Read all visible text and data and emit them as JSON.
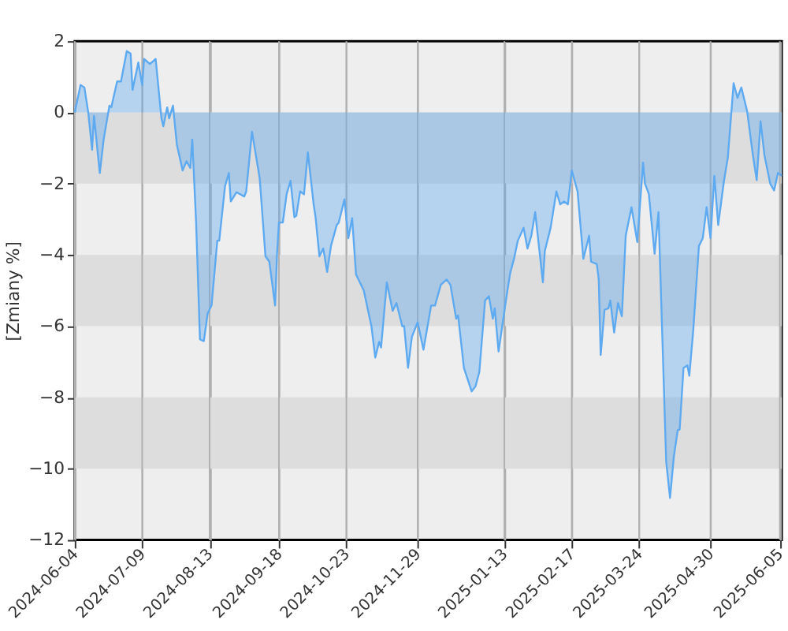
{
  "chart_data": {
    "type": "area",
    "ylabel": "[Zmiany %]",
    "x": [
      "2024-06-04",
      "2024-06-07",
      "2024-06-09",
      "2024-06-11",
      "2024-06-13",
      "2024-06-14",
      "2024-06-17",
      "2024-06-19",
      "2024-06-22",
      "2024-06-23",
      "2024-06-26",
      "2024-06-28",
      "2024-07-01",
      "2024-07-03",
      "2024-07-04",
      "2024-07-07",
      "2024-07-09",
      "2024-07-10",
      "2024-07-13",
      "2024-07-16",
      "2024-07-19",
      "2024-07-20",
      "2024-07-22",
      "2024-07-23",
      "2024-07-25",
      "2024-07-27",
      "2024-07-30",
      "2024-08-01",
      "2024-08-03",
      "2024-08-04",
      "2024-08-06",
      "2024-08-08",
      "2024-08-10",
      "2024-08-12",
      "2024-08-14",
      "2024-08-17",
      "2024-08-18",
      "2024-08-21",
      "2024-08-23",
      "2024-08-24",
      "2024-08-27",
      "2024-08-31",
      "2024-09-01",
      "2024-09-04",
      "2024-09-08",
      "2024-09-11",
      "2024-09-13",
      "2024-09-16",
      "2024-09-17",
      "2024-09-18",
      "2024-09-20",
      "2024-09-22",
      "2024-09-24",
      "2024-09-26",
      "2024-09-27",
      "2024-09-29",
      "2024-10-01",
      "2024-10-03",
      "2024-10-06",
      "2024-10-07",
      "2024-10-09",
      "2024-10-11",
      "2024-10-13",
      "2024-10-15",
      "2024-10-18",
      "2024-10-19",
      "2024-10-22",
      "2024-10-24",
      "2024-10-26",
      "2024-10-28",
      "2024-11-01",
      "2024-11-05",
      "2024-11-07",
      "2024-11-09",
      "2024-11-10",
      "2024-11-13",
      "2024-11-16",
      "2024-11-18",
      "2024-11-21",
      "2024-11-22",
      "2024-11-24",
      "2024-11-26",
      "2024-11-29",
      "2024-12-02",
      "2024-12-06",
      "2024-12-08",
      "2024-12-11",
      "2024-12-14",
      "2024-12-16",
      "2024-12-19",
      "2024-12-20",
      "2024-12-23",
      "2024-12-27",
      "2024-12-29",
      "2024-12-31",
      "2025-01-03",
      "2025-01-05",
      "2025-01-07",
      "2025-01-08",
      "2025-01-10",
      "2025-01-14",
      "2025-01-16",
      "2025-01-18",
      "2025-01-20",
      "2025-01-23",
      "2025-01-25",
      "2025-01-27",
      "2025-01-29",
      "2025-02-02",
      "2025-02-03",
      "2025-02-06",
      "2025-02-09",
      "2025-02-11",
      "2025-02-13",
      "2025-02-15",
      "2025-02-17",
      "2025-02-20",
      "2025-02-23",
      "2025-02-26",
      "2025-02-27",
      "2025-03-02",
      "2025-03-03",
      "2025-03-04",
      "2025-03-06",
      "2025-03-08",
      "2025-03-09",
      "2025-03-11",
      "2025-03-13",
      "2025-03-15",
      "2025-03-17",
      "2025-03-20",
      "2025-03-23",
      "2025-03-26",
      "2025-03-27",
      "2025-03-29",
      "2025-04-01",
      "2025-04-03",
      "2025-04-05",
      "2025-04-07",
      "2025-04-09",
      "2025-04-11",
      "2025-04-13",
      "2025-04-14",
      "2025-04-16",
      "2025-04-18",
      "2025-04-19",
      "2025-04-21",
      "2025-04-24",
      "2025-04-26",
      "2025-04-28",
      "2025-04-30",
      "2025-05-02",
      "2025-05-04",
      "2025-05-07",
      "2025-05-09",
      "2025-05-12",
      "2025-05-14",
      "2025-05-16",
      "2025-05-19",
      "2025-05-22",
      "2025-05-24",
      "2025-05-26",
      "2025-05-28",
      "2025-05-31",
      "2025-06-02",
      "2025-06-04",
      "2025-06-06"
    ],
    "series": [
      {
        "color": "#5eaaf0",
        "values": [
          0.0,
          0.77,
          0.7,
          0.0,
          -1.05,
          -0.1,
          -1.7,
          -0.76,
          0.19,
          0.15,
          0.87,
          0.87,
          1.72,
          1.65,
          0.63,
          1.4,
          0.77,
          1.5,
          1.36,
          1.5,
          -0.17,
          -0.39,
          0.14,
          -0.17,
          0.19,
          -0.9,
          -1.63,
          -1.37,
          -1.56,
          -0.76,
          -3.09,
          -6.37,
          -6.42,
          -5.64,
          -5.42,
          -3.6,
          -3.6,
          -2.07,
          -1.7,
          -2.5,
          -2.24,
          -2.36,
          -2.22,
          -0.54,
          -1.85,
          -4.04,
          -4.19,
          -5.42,
          -3.97,
          -3.09,
          -3.09,
          -2.29,
          -1.92,
          -2.94,
          -2.9,
          -2.22,
          -2.3,
          -1.12,
          -2.58,
          -2.94,
          -4.04,
          -3.82,
          -4.48,
          -3.75,
          -3.16,
          -3.1,
          -2.44,
          -3.53,
          -2.97,
          -4.55,
          -4.99,
          -6.0,
          -6.88,
          -6.44,
          -6.6,
          -4.77,
          -5.57,
          -5.35,
          -6.0,
          -6.0,
          -7.17,
          -6.3,
          -5.89,
          -6.66,
          -5.42,
          -5.42,
          -4.84,
          -4.69,
          -4.84,
          -5.79,
          -5.7,
          -7.17,
          -7.83,
          -7.69,
          -7.29,
          -5.28,
          -5.16,
          -5.79,
          -5.5,
          -6.71,
          -5.21,
          -4.52,
          -4.11,
          -3.6,
          -3.24,
          -3.82,
          -3.46,
          -2.8,
          -4.77,
          -3.89,
          -3.24,
          -2.22,
          -2.58,
          -2.5,
          -2.58,
          -1.63,
          -2.22,
          -4.11,
          -3.46,
          -4.19,
          -4.26,
          -4.69,
          -6.81,
          -5.54,
          -5.5,
          -5.28,
          -6.18,
          -5.35,
          -5.72,
          -3.46,
          -2.66,
          -3.64,
          -1.41,
          -2.0,
          -2.29,
          -3.97,
          -2.8,
          -6.3,
          -9.8,
          -10.82,
          -9.65,
          -8.92,
          -8.9,
          -7.17,
          -7.1,
          -7.39,
          -6.15,
          -3.75,
          -3.53,
          -2.66,
          -3.53,
          -1.78,
          -3.16,
          -1.92,
          -1.27,
          0.82,
          0.41,
          0.7,
          0.04,
          -1.2,
          -1.9,
          -0.25,
          -1.2,
          -2.0,
          -2.19,
          -1.7,
          -1.78
        ]
      }
    ],
    "xlim": [
      "2024-06-04",
      "2025-06-06"
    ],
    "xticks": [
      "2024-06-04",
      "2024-07-09",
      "2024-08-13",
      "2024-09-18",
      "2024-10-23",
      "2024-11-29",
      "2025-01-13",
      "2025-02-17",
      "2025-03-24",
      "2025-04-30",
      "2025-06-05"
    ],
    "ylim": [
      -12,
      2
    ],
    "yticks": [
      -12,
      -10,
      -8,
      -6,
      -4,
      -2,
      0,
      2
    ],
    "grid": "x",
    "bands": [
      {
        "axis": "y",
        "from": -2,
        "to": 0,
        "color": "#dddddd"
      },
      {
        "axis": "y",
        "from": -6,
        "to": -4,
        "color": "#dddddd"
      },
      {
        "axis": "y",
        "from": -10,
        "to": -8,
        "color": "#dddddd"
      }
    ]
  }
}
